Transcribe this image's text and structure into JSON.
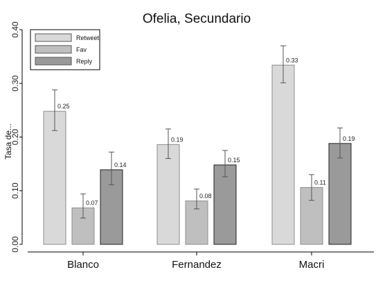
{
  "chart_data": {
    "type": "bar",
    "title": "Ofelia, Secundario",
    "xlabel": "",
    "ylabel": "Tasa de...",
    "ylim": [
      0,
      0.4
    ],
    "yticks": [
      0,
      0.1,
      0.2,
      0.3,
      0.4
    ],
    "ytick_labels": [
      "0.00",
      "0.10",
      "0.20",
      "0.30",
      "0.40"
    ],
    "categories": [
      "Blanco",
      "Fernandez",
      "Macri"
    ],
    "grid": false,
    "legend_position": "top-left",
    "series": [
      {
        "name": "Retweet",
        "color": "#d9d9d9",
        "values": [
          0.248,
          0.186,
          0.334
        ],
        "error_low": [
          0.212,
          0.16,
          0.301
        ],
        "error_high": [
          0.288,
          0.215,
          0.37
        ],
        "data_labels": [
          "0.25",
          "0.19",
          "0.33"
        ]
      },
      {
        "name": "Fav",
        "color": "#bfbfbf",
        "values": [
          0.068,
          0.081,
          0.106
        ],
        "error_low": [
          0.049,
          0.066,
          0.082
        ],
        "error_high": [
          0.094,
          0.103,
          0.13
        ],
        "data_labels": [
          "0.07",
          "0.08",
          "0.11"
        ]
      },
      {
        "name": "Reply",
        "color": "#9a9a9a",
        "values": [
          0.139,
          0.148,
          0.188
        ],
        "error_low": [
          0.111,
          0.126,
          0.161
        ],
        "error_high": [
          0.172,
          0.175,
          0.217
        ],
        "data_labels": [
          "0.14",
          "0.15",
          "0.19"
        ]
      }
    ]
  }
}
